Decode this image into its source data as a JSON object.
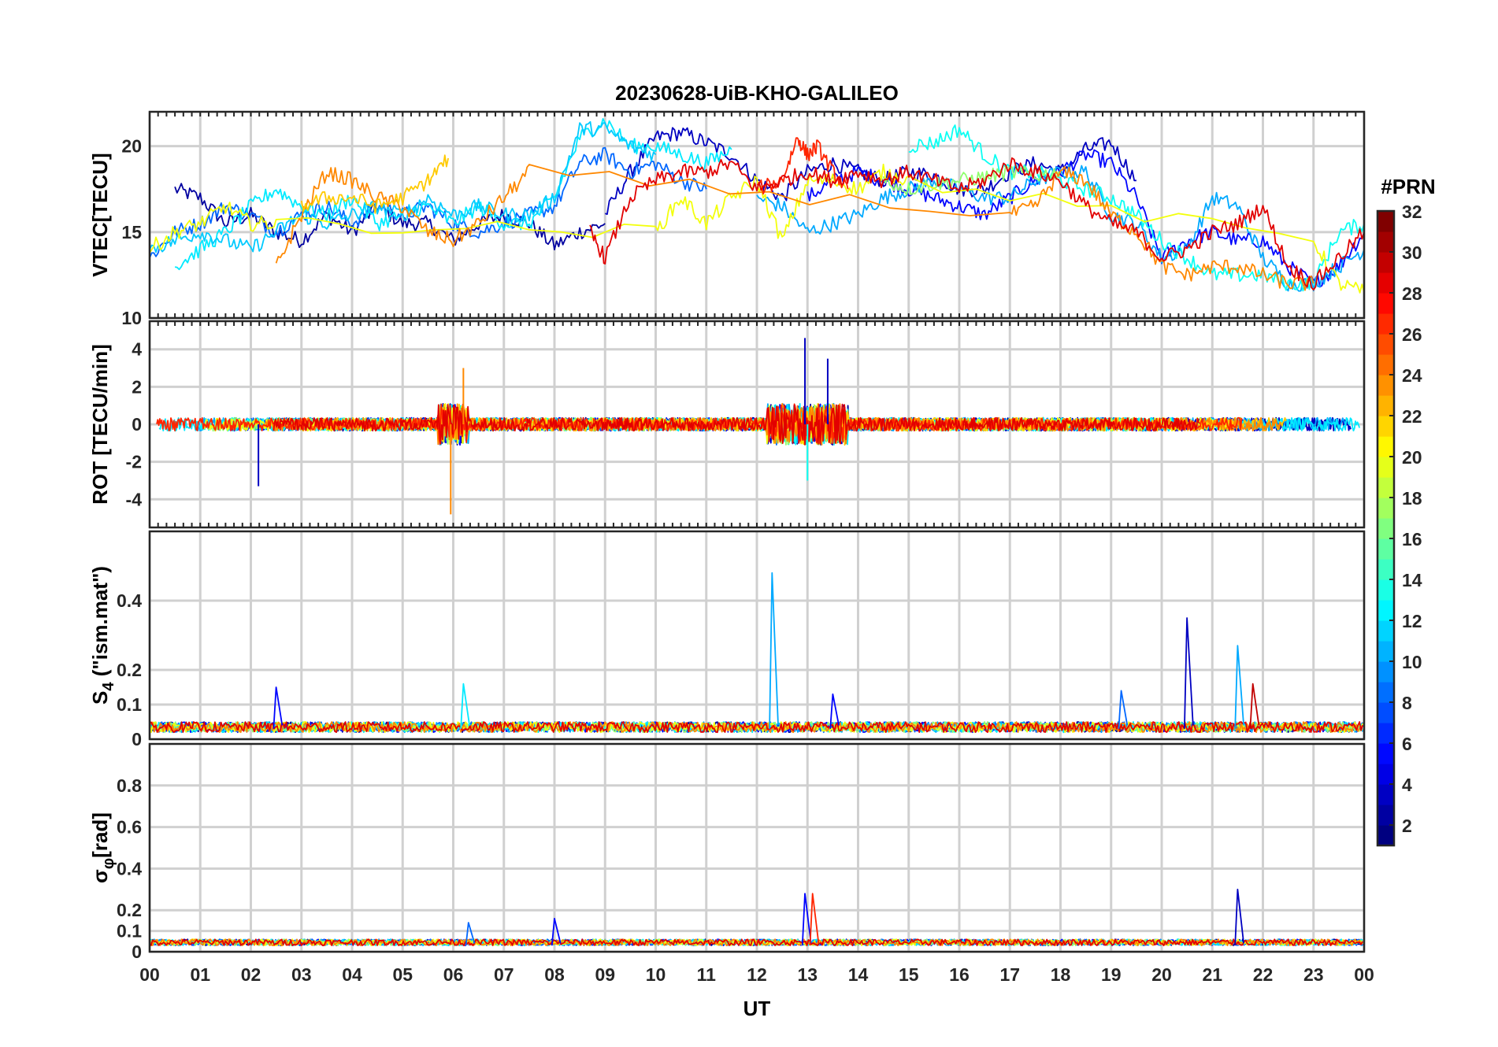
{
  "chart_data": {
    "type": "line",
    "title": "20230628-UiB-KHO-GALILEO",
    "xlabel": "UT",
    "x_ticks": [
      "00",
      "01",
      "02",
      "03",
      "04",
      "05",
      "06",
      "07",
      "08",
      "09",
      "10",
      "11",
      "12",
      "13",
      "14",
      "15",
      "16",
      "17",
      "18",
      "19",
      "20",
      "21",
      "22",
      "23",
      "00"
    ],
    "xlim": [
      0,
      24
    ],
    "grid": true,
    "colorbar": {
      "title": "#PRN",
      "colormap": "jet",
      "range": [
        1,
        32
      ],
      "ticks": [
        "2",
        "4",
        "6",
        "8",
        "10",
        "12",
        "14",
        "16",
        "18",
        "20",
        "22",
        "24",
        "26",
        "28",
        "30",
        "32"
      ]
    },
    "panels": [
      {
        "id": "vtec",
        "ylabel": "VTEC[TECU]",
        "ylim": [
          10,
          22
        ],
        "y_ticks": [
          "10",
          "15",
          "20"
        ],
        "series": [
          {
            "prn": 2,
            "x": [
              0.5,
              1,
              1.5,
              2,
              2.5,
              3,
              3.5,
              4,
              4.5,
              5,
              5.5,
              6,
              6.5,
              7,
              7.5,
              8,
              8.5,
              9
            ],
            "y": [
              17.5,
              17,
              15.5,
              16,
              15,
              14.5,
              16,
              15,
              16.5,
              15.5,
              15.5,
              14.5,
              15.5,
              16,
              15.5,
              14.2,
              15,
              15.5
            ]
          },
          {
            "prn": 3,
            "x": [
              9,
              9.5,
              10,
              10.5,
              11,
              11.5,
              12,
              12.5,
              13,
              13.5,
              14,
              14.5,
              15,
              15.5,
              16,
              16.5,
              17,
              17.5,
              18,
              18.5,
              19,
              19.5
            ],
            "y": [
              16,
              18.5,
              20.5,
              20.8,
              20.2,
              19.5,
              18,
              17,
              18.5,
              19,
              18.5,
              18,
              18.5,
              18.3,
              17.5,
              17.5,
              18.5,
              19,
              18.5,
              19.8,
              20.2,
              18
            ]
          },
          {
            "prn": 5,
            "x": [
              13,
              13.5,
              14,
              14.5,
              15,
              15.5,
              16,
              16.5,
              17,
              17.5,
              18,
              18.5,
              19,
              19.5,
              20,
              20.5,
              21,
              21.5,
              22,
              22.5,
              23,
              23.5,
              24
            ],
            "y": [
              17,
              18,
              18.5,
              18,
              17.5,
              17,
              16.5,
              16,
              17,
              18,
              18.5,
              19.5,
              19,
              17,
              13.5,
              14.5,
              15,
              14.5,
              14.5,
              13,
              12,
              13,
              15
            ]
          },
          {
            "prn": 8,
            "x": [
              0,
              0.5,
              1,
              1.5,
              2,
              2.5,
              3,
              3.5,
              4,
              4.5,
              5,
              5.5,
              6,
              6.5,
              7,
              7.5,
              8,
              8.5,
              9,
              9.5,
              10,
              10.5,
              11
            ],
            "y": [
              13.5,
              15,
              15.5,
              16.5,
              16,
              15,
              16,
              16.5,
              15.5,
              16.5,
              16,
              16.5,
              15.5,
              15,
              15.5,
              16,
              16.5,
              19,
              19.5,
              18.5,
              19,
              18,
              17.5
            ]
          },
          {
            "prn": 10,
            "x": [
              12,
              12.5,
              13,
              13.5,
              14,
              14.5,
              15,
              15.5,
              16,
              16.5,
              17,
              17.5,
              18,
              18.5,
              19,
              19.5,
              20,
              20.5,
              21,
              21.5,
              22,
              22.5,
              23,
              23.5,
              24
            ],
            "y": [
              17,
              16.5,
              15,
              15.5,
              16,
              17,
              17.5,
              18,
              17.5,
              17,
              17,
              18,
              18.5,
              18.5,
              16,
              15.5,
              13.5,
              14,
              17,
              16.5,
              13.5,
              12,
              12,
              13,
              14
            ]
          },
          {
            "prn": 12,
            "x": [
              0.5,
              1,
              1.5,
              2,
              2.5,
              3,
              3.5,
              4,
              4.5,
              5,
              5.5,
              6,
              6.5,
              7,
              7.5,
              8,
              8.5,
              9,
              9.5,
              10,
              10.5,
              11,
              11.5
            ],
            "y": [
              13,
              14,
              15,
              16.5,
              17.5,
              16.5,
              16,
              17,
              15.5,
              16,
              16.5,
              15.5,
              16.5,
              15.5,
              15.5,
              17,
              20.5,
              21.5,
              20,
              20,
              19.5,
              19,
              19.8
            ]
          },
          {
            "prn": 13,
            "x": [
              15,
              15.5,
              16,
              16.5,
              17,
              17.5,
              18,
              18.5,
              19,
              19.5,
              20,
              20.5,
              21,
              21.5,
              22,
              22.5,
              23,
              23.5,
              24
            ],
            "y": [
              20,
              20.2,
              21,
              19.5,
              18.5,
              18.5,
              18,
              17.5,
              17,
              16,
              14.5,
              13.5,
              12.5,
              12.5,
              12.5,
              12,
              12,
              15,
              15.5
            ]
          },
          {
            "prn": 11,
            "x": [
              0,
              0.5,
              1,
              1.5,
              2,
              2.5,
              3,
              3.5,
              4,
              4.5,
              5,
              5.5,
              6,
              6.5,
              7,
              7.5,
              8,
              8.5,
              9,
              9.5,
              10
            ],
            "y": [
              14,
              14.5,
              15,
              14.5,
              14,
              15,
              16,
              15.5,
              16,
              16.5,
              16,
              17,
              16,
              16.5,
              16,
              16,
              17,
              21,
              21,
              20,
              19.5
            ]
          },
          {
            "prn": 17,
            "x": [
              14.5,
              15,
              15.5,
              16,
              16.5,
              17,
              17.5,
              18
            ],
            "y": [
              18,
              17.5,
              17.8,
              18,
              18.2,
              18.5,
              18.3,
              18.5
            ]
          },
          {
            "prn": 20,
            "x": [
              0,
              0.5,
              1,
              1.5,
              2,
              2.5,
              10,
              10.5,
              11,
              11.5,
              12,
              12.5,
              13,
              13.5,
              14,
              14.5,
              15,
              23,
              23.5,
              24
            ],
            "y": [
              14,
              15,
              15.5,
              16.5,
              15.5,
              15.5,
              15,
              17,
              15.5,
              17,
              18,
              14.5,
              18,
              18,
              17.5,
              18.5,
              18,
              14.5,
              12,
              11.5
            ]
          },
          {
            "prn": 24,
            "x": [
              2.5,
              3,
              3.5,
              4,
              4.5,
              5,
              5.5,
              6,
              6.5,
              7,
              7.5,
              17,
              17.5,
              18,
              18.5,
              19,
              19.5,
              20,
              20.5,
              21,
              21.5,
              22,
              22.5,
              23
            ],
            "y": [
              13,
              16,
              18.5,
              18,
              17,
              16.5,
              15,
              14.5,
              15.5,
              17,
              18.5,
              16,
              16.5,
              18.5,
              18,
              16,
              15,
              13,
              12.5,
              13,
              13,
              12.5,
              12,
              12
            ]
          },
          {
            "prn": 22,
            "x": [
              3,
              3.5,
              4,
              4.5,
              5,
              5.5,
              5.9
            ],
            "y": [
              16.5,
              17,
              17,
              16.5,
              17,
              18,
              19.3
            ]
          },
          {
            "prn": 27,
            "x": [
              12,
              12.5,
              12.8,
              13,
              13.2,
              13.5,
              13.8
            ],
            "y": [
              17.5,
              18,
              20.5,
              19.5,
              20,
              18.5,
              17.5
            ]
          },
          {
            "prn": 29,
            "x": [
              8.7,
              9,
              9.5,
              10,
              10.5,
              11,
              11.5,
              12,
              12.5,
              13,
              13.5,
              14,
              14.5,
              15,
              15.5,
              16,
              16.5,
              17,
              17.5,
              18,
              18.5,
              19,
              19.5,
              20,
              20.5,
              21,
              21.5,
              22,
              22.5,
              23,
              23.5,
              24
            ],
            "y": [
              15,
              13.5,
              17,
              18,
              18.5,
              18.5,
              19,
              17.5,
              18,
              18.5,
              18,
              18.5,
              18,
              18.5,
              18,
              17.5,
              18,
              19,
              18.5,
              18,
              16.5,
              15.5,
              15,
              13.5,
              14,
              15,
              15.5,
              16.5,
              13,
              12,
              13.5,
              15
            ]
          }
        ]
      },
      {
        "id": "rot",
        "ylabel": "ROT [TECU/min]",
        "ylim": [
          -5.5,
          5.5
        ],
        "y_ticks": [
          "-4",
          "-2",
          "0",
          "2",
          "4"
        ]
      },
      {
        "id": "s4",
        "ylabel": "S",
        "ylabel_sub": "4",
        "ylabel_suffix": " (\"ism.mat\")",
        "ylim": [
          0,
          0.6
        ],
        "y_ticks": [
          "0",
          "0.1",
          "0.2",
          "0.4"
        ],
        "spikes": [
          {
            "prn": 10,
            "x": 12.3,
            "y": 0.48
          },
          {
            "prn": 3,
            "x": 20.5,
            "y": 0.35
          },
          {
            "prn": 10,
            "x": 21.5,
            "y": 0.27
          },
          {
            "prn": 5,
            "x": 2.5,
            "y": 0.15
          },
          {
            "prn": 12,
            "x": 6.2,
            "y": 0.16
          },
          {
            "prn": 5,
            "x": 13.5,
            "y": 0.13
          },
          {
            "prn": 30,
            "x": 21.8,
            "y": 0.16
          },
          {
            "prn": 8,
            "x": 19.2,
            "y": 0.14
          }
        ]
      },
      {
        "id": "sigphi",
        "ylabel": "σ",
        "ylabel_sub": "φ",
        "ylabel_suffix": "[rad]",
        "ylim": [
          0,
          1.0
        ],
        "y_ticks": [
          "0",
          "0.1",
          "0.2",
          "0.4",
          "0.6",
          "0.8"
        ],
        "spikes": [
          {
            "prn": 5,
            "x": 12.95,
            "y": 0.28
          },
          {
            "prn": 27,
            "x": 13.1,
            "y": 0.28
          },
          {
            "prn": 3,
            "x": 21.5,
            "y": 0.3
          },
          {
            "prn": 8,
            "x": 6.3,
            "y": 0.14
          },
          {
            "prn": 5,
            "x": 8,
            "y": 0.16
          }
        ]
      }
    ]
  }
}
